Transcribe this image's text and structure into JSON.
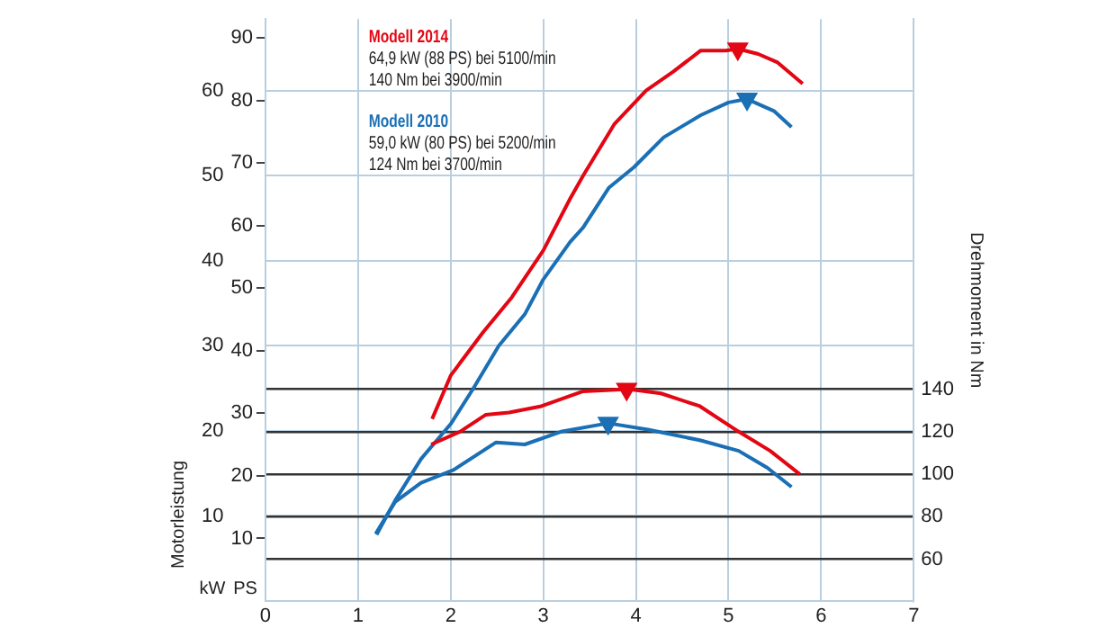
{
  "chart_data": {
    "type": "line",
    "xlim": [
      0,
      7
    ],
    "xticks": [
      0,
      1,
      2,
      3,
      4,
      5,
      6,
      7
    ],
    "ylim": [
      0,
      68.4
    ],
    "yticks": [
      10,
      20,
      30,
      40,
      50,
      60
    ],
    "y3lim": [
      0,
      93
    ],
    "y3ticks": [
      10,
      20,
      30,
      40,
      50,
      60,
      70,
      80,
      90
    ],
    "y2lim": [
      40.4,
      314
    ],
    "y2ticks": [
      60,
      80,
      100,
      120,
      140
    ],
    "ylabel": "Motorleistung",
    "y2label": "Drehmoment in Nm",
    "grid": true,
    "legend": "top left",
    "line_style": "solid",
    "marker": "none",
    "series": [
      {
        "name": "Modell 2014",
        "color": "#e30613",
        "x": [
          1.8,
          2.0,
          2.35,
          2.66,
          3.0,
          3.29,
          3.43,
          3.77,
          4.11,
          4.4,
          4.7,
          4.97,
          5.1,
          5.32,
          5.53,
          5.8
        ],
        "values": [
          21.4,
          26.5,
          31.6,
          35.7,
          41.2,
          47.3,
          50,
          56.1,
          60,
          62.2,
          64.7,
          64.7,
          64.9,
          64.3,
          63.3,
          60.8
        ]
      },
      {
        "color": "#e30613",
        "axis": "y2",
        "x": [
          1.79,
          2.1,
          2.38,
          2.63,
          2.98,
          3.43,
          3.92,
          4.27,
          4.69,
          5.11,
          5.45,
          5.77
        ],
        "values": [
          114,
          120,
          128,
          129,
          132,
          139,
          140,
          138,
          132,
          120,
          111,
          100
        ]
      },
      {
        "name": "Modell 2010",
        "color": "#1a6fb5",
        "x": [
          1.2,
          1.4,
          1.68,
          2.0,
          2.24,
          2.52,
          2.8,
          3.0,
          3.29,
          3.43,
          3.71,
          3.98,
          4.3,
          4.7,
          5.0,
          5.2,
          5.49,
          5.68
        ],
        "values": [
          7.8,
          11.8,
          16.7,
          20.8,
          24.9,
          30,
          33.7,
          37.8,
          42.2,
          43.9,
          48.6,
          51,
          54.5,
          57.1,
          58.6,
          59,
          57.6,
          55.7
        ]
      },
      {
        "color": "#1a6fb5",
        "axis": "y2",
        "x": [
          1.19,
          1.4,
          1.68,
          2.03,
          2.49,
          2.8,
          3.19,
          3.7,
          4.13,
          4.69,
          5.11,
          5.42,
          5.68
        ],
        "values": [
          72,
          87,
          96,
          102,
          115,
          114,
          120,
          124,
          121,
          116,
          111,
          103,
          94
        ]
      },
      {
        "type": "scatter",
        "marker": "triangle",
        "color": "#e30613",
        "x": [
          5.1
        ],
        "values": [
          64.9
        ]
      },
      {
        "type": "scatter",
        "marker": "triangle",
        "color": "#e30613",
        "axis": "y2",
        "x": [
          3.9
        ],
        "values": [
          140
        ]
      },
      {
        "type": "scatter",
        "marker": "triangle",
        "color": "#1a6fb5",
        "x": [
          5.2
        ],
        "values": [
          59
        ]
      },
      {
        "type": "scatter",
        "marker": "triangle",
        "color": "#1a6fb5",
        "axis": "y2",
        "x": [
          3.7
        ],
        "values": [
          124
        ]
      }
    ],
    "annotations": [
      "64,9 kW (88 PS) bei 5100/min",
      "140 Nm bei 3900/min",
      "59,0 kW (80 PS) bei 5200/min",
      "124 Nm bei 3700/min",
      "kW",
      "PS"
    ]
  }
}
